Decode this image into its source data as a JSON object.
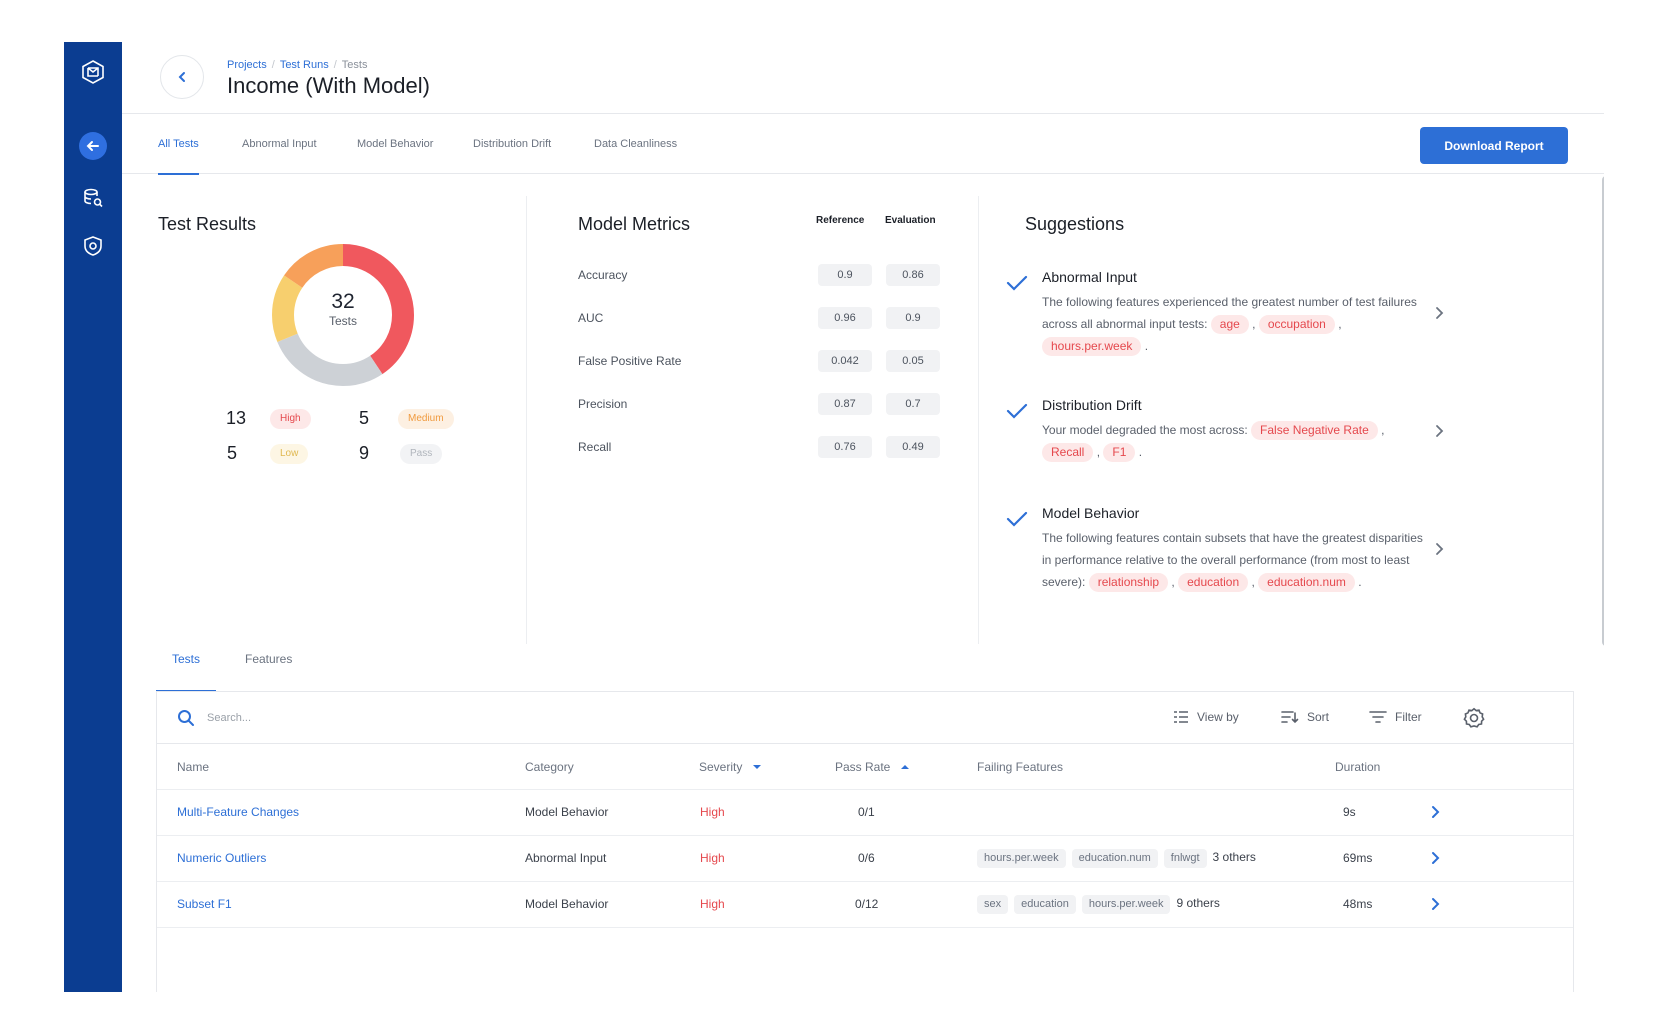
{
  "header": {
    "breadcrumbs": [
      "Projects",
      "Test Runs",
      "Tests"
    ],
    "title": "Income (With Model)"
  },
  "tabs": [
    "All Tests",
    "Abnormal Input",
    "Model Behavior",
    "Distribution Drift",
    "Data Cleanliness"
  ],
  "download_label": "Download Report",
  "test_results": {
    "title": "Test Results",
    "total": "32",
    "total_label": "Tests",
    "legend": [
      {
        "count": "13",
        "label": "High"
      },
      {
        "count": "5",
        "label": "Medium"
      },
      {
        "count": "5",
        "label": "Low"
      },
      {
        "count": "9",
        "label": "Pass"
      }
    ],
    "colors": {
      "high": "#f0585e",
      "medium": "#f7a05a",
      "low": "#f7cf6e",
      "pass": "#cdd1d6"
    }
  },
  "model_metrics": {
    "title": "Model Metrics",
    "col_reference": "Reference",
    "col_evaluation": "Evaluation",
    "rows": [
      {
        "label": "Accuracy",
        "reference": "0.9",
        "evaluation": "0.86"
      },
      {
        "label": "AUC",
        "reference": "0.96",
        "evaluation": "0.9"
      },
      {
        "label": "False Positive Rate",
        "reference": "0.042",
        "evaluation": "0.05"
      },
      {
        "label": "Precision",
        "reference": "0.87",
        "evaluation": "0.7"
      },
      {
        "label": "Recall",
        "reference": "0.76",
        "evaluation": "0.49"
      }
    ]
  },
  "suggestions": {
    "title": "Suggestions",
    "items": [
      {
        "title": "Abnormal Input",
        "text": "The following features experienced the greatest number of test failures across all abnormal input tests:",
        "tags": [
          "age",
          "occupation",
          "hours.per.week"
        ]
      },
      {
        "title": "Distribution Drift",
        "text": "Your model degraded the most across:",
        "tags": [
          "False Negative Rate",
          "Recall",
          "F1"
        ]
      },
      {
        "title": "Model Behavior",
        "text": "The following features contain subsets that have the greatest disparities in performance relative to the overall performance (from most to least severe):",
        "tags": [
          "relationship",
          "education",
          "education.num"
        ]
      }
    ]
  },
  "bottom_tabs": [
    "Tests",
    "Features"
  ],
  "search_placeholder": "Search...",
  "toolbar": {
    "view_by": "View by",
    "sort": "Sort",
    "filter": "Filter"
  },
  "table": {
    "columns": [
      "Name",
      "Category",
      "Severity",
      "Pass Rate",
      "Failing Features",
      "Duration"
    ],
    "rows": [
      {
        "name": "Multi-Feature Changes",
        "category": "Model Behavior",
        "severity": "High",
        "pass_rate": "0/1",
        "features": [],
        "others": "",
        "duration": "9s"
      },
      {
        "name": "Numeric Outliers",
        "category": "Abnormal Input",
        "severity": "High",
        "pass_rate": "0/6",
        "features": [
          "hours.per.week",
          "education.num",
          "fnlwgt"
        ],
        "others": "3 others",
        "duration": "69ms"
      },
      {
        "name": "Subset F1",
        "category": "Model Behavior",
        "severity": "High",
        "pass_rate": "0/12",
        "features": [
          "sex",
          "education",
          "hours.per.week"
        ],
        "others": "9 others",
        "duration": "48ms"
      }
    ]
  }
}
